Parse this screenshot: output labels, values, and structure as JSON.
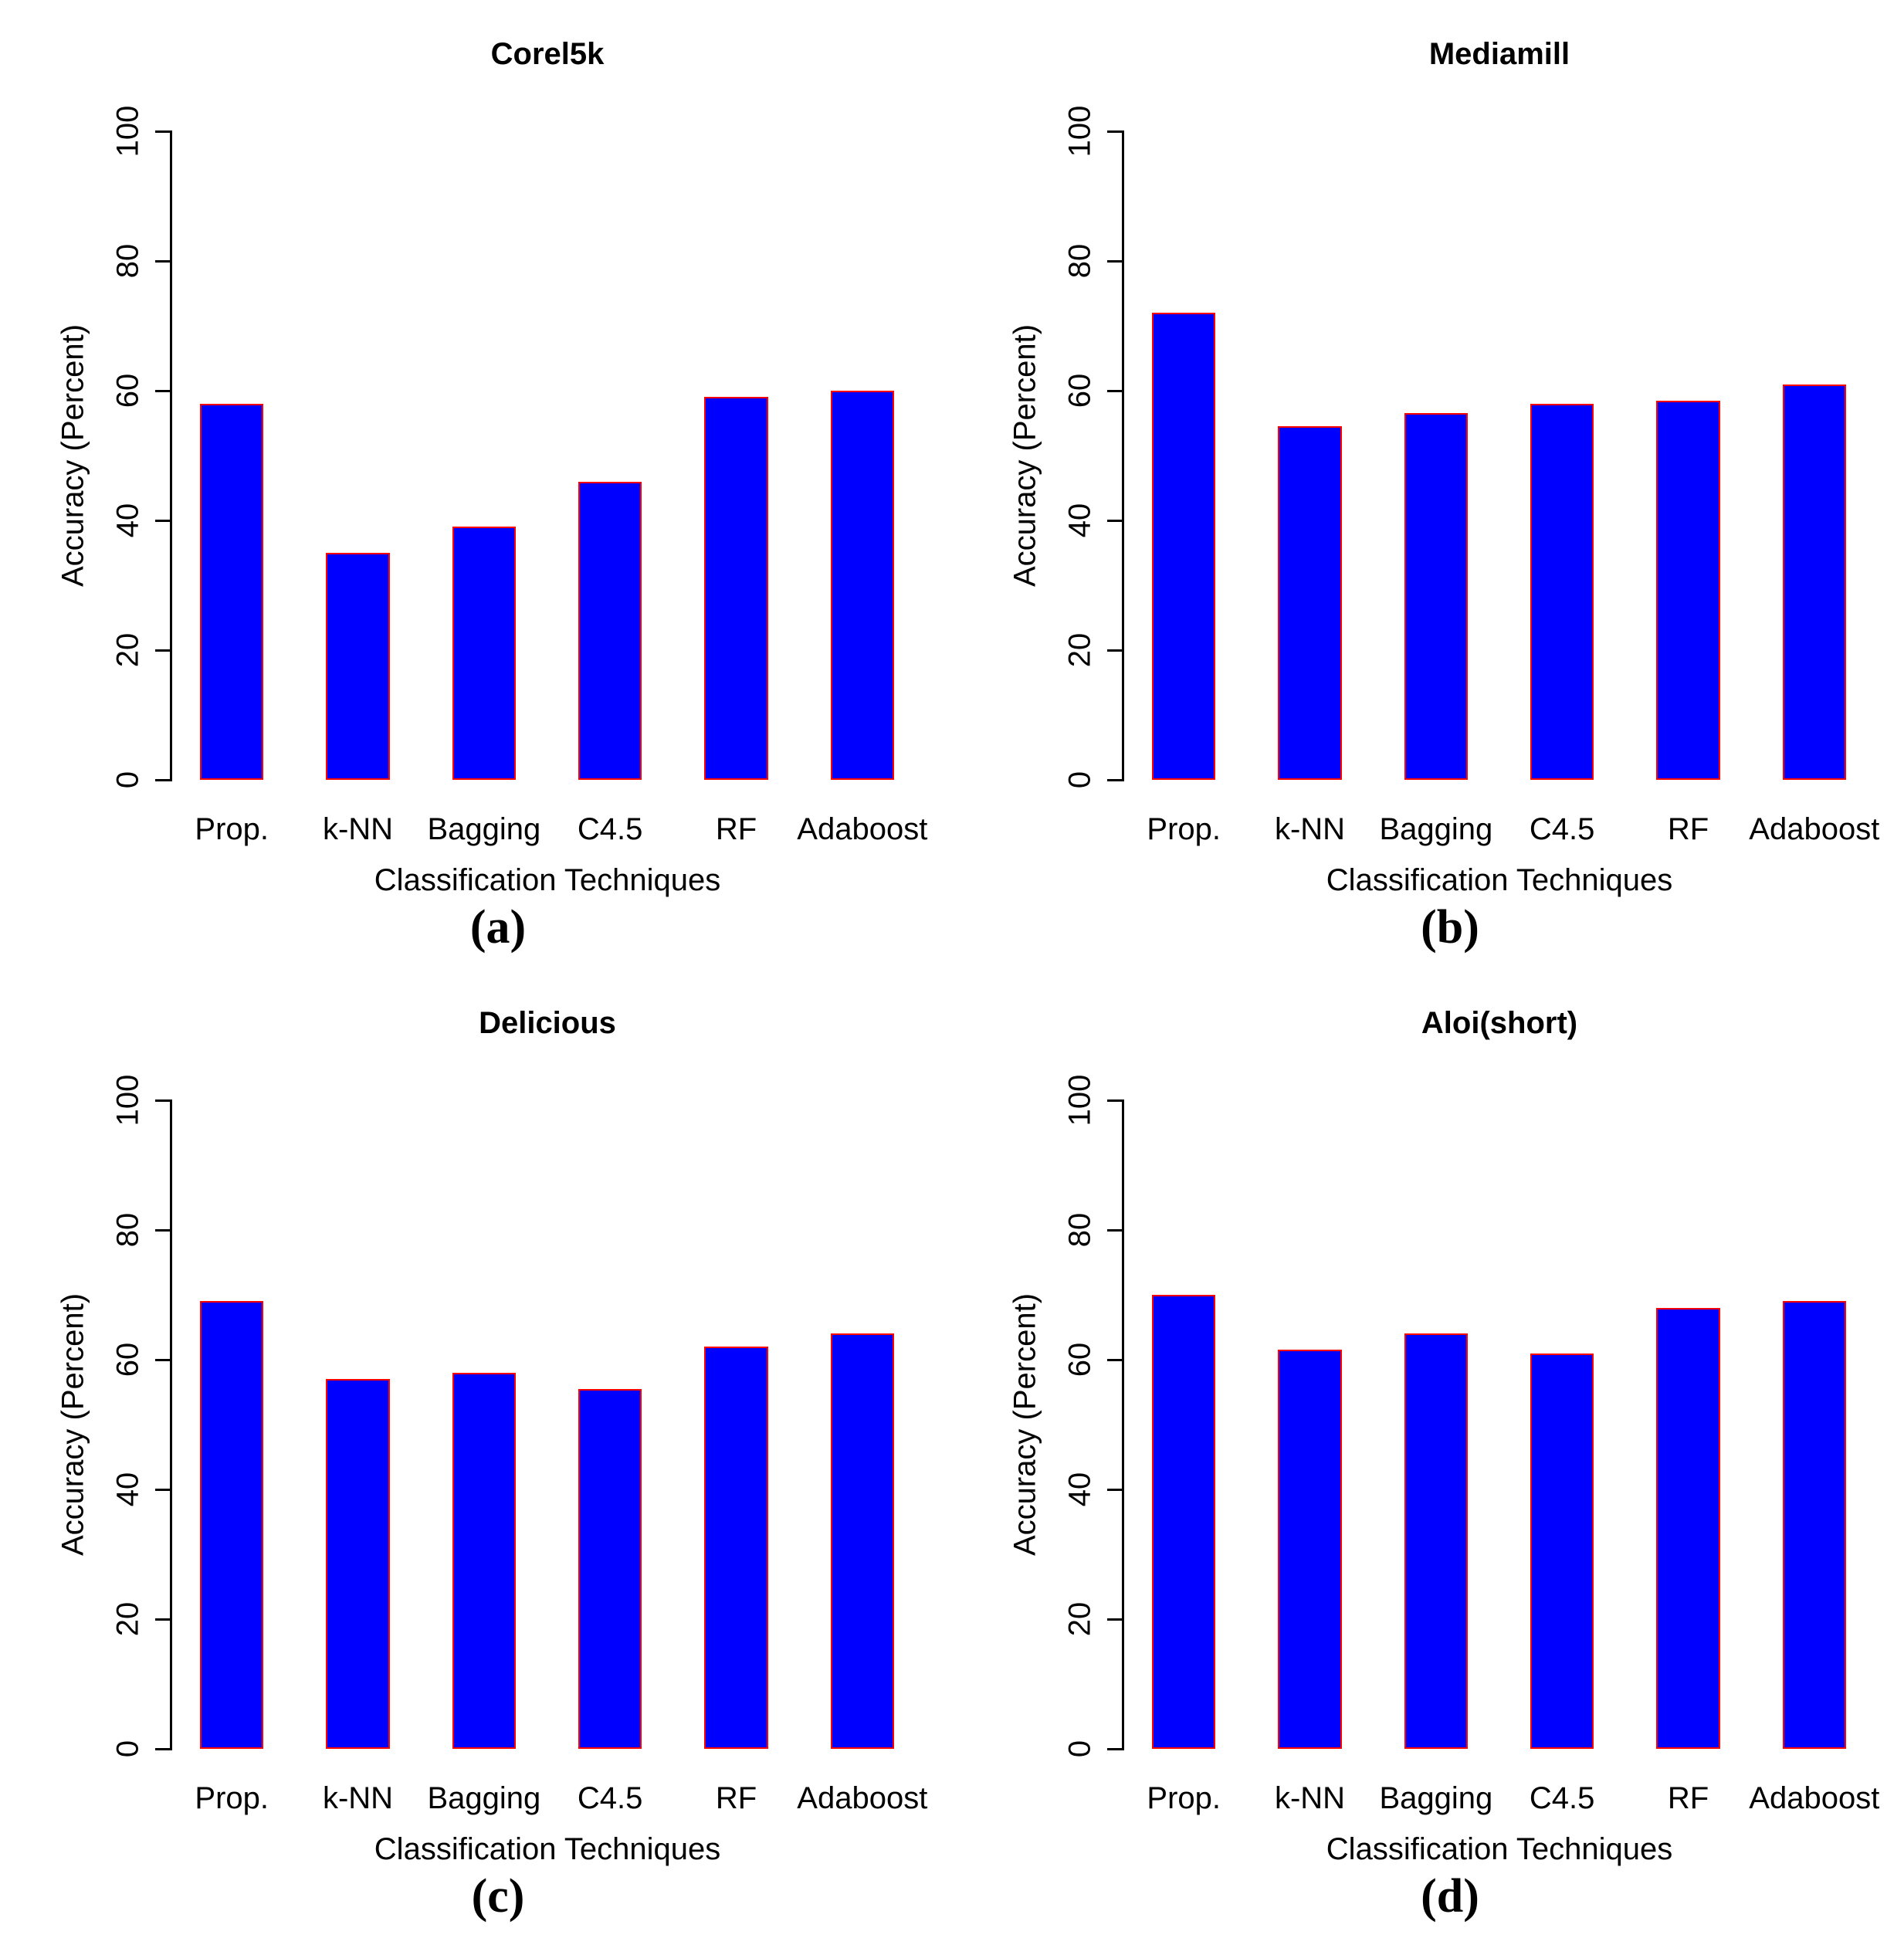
{
  "figure": {
    "background": "#ffffff",
    "text_color": "#000000",
    "axis_color": "#000000"
  },
  "chart_data": [
    {
      "type": "bar",
      "panel_label": "(a)",
      "title": "Corel5k",
      "xlabel": "Classification Techniques",
      "ylabel": "Accuracy (Percent)",
      "categories": [
        "Prop.",
        "k-NN",
        "Bagging",
        "C4.5",
        "RF",
        "Adaboost"
      ],
      "values": [
        58,
        35,
        39,
        46,
        59,
        60
      ],
      "ylim": [
        0,
        100
      ],
      "yticks": [
        0,
        20,
        40,
        60,
        80,
        100
      ],
      "grid": "off",
      "legend": "none",
      "bar_color": "#0000ff",
      "bar_border_color": "#ff0000"
    },
    {
      "type": "bar",
      "panel_label": "(b)",
      "title": "Mediamill",
      "xlabel": "Classification Techniques",
      "ylabel": "Accuracy (Percent)",
      "categories": [
        "Prop.",
        "k-NN",
        "Bagging",
        "C4.5",
        "RF",
        "Adaboost"
      ],
      "values": [
        72,
        54.5,
        56.5,
        58,
        58.5,
        61
      ],
      "ylim": [
        0,
        100
      ],
      "yticks": [
        0,
        20,
        40,
        60,
        80,
        100
      ],
      "grid": "off",
      "legend": "none",
      "bar_color": "#0000ff",
      "bar_border_color": "#ff0000"
    },
    {
      "type": "bar",
      "panel_label": "(c)",
      "title": "Delicious",
      "xlabel": "Classification Techniques",
      "ylabel": "Accuracy (Percent)",
      "categories": [
        "Prop.",
        "k-NN",
        "Bagging",
        "C4.5",
        "RF",
        "Adaboost"
      ],
      "values": [
        69,
        57,
        58,
        55.5,
        62,
        64
      ],
      "ylim": [
        0,
        100
      ],
      "yticks": [
        0,
        20,
        40,
        60,
        80,
        100
      ],
      "grid": "off",
      "legend": "none",
      "bar_color": "#0000ff",
      "bar_border_color": "#ff0000"
    },
    {
      "type": "bar",
      "panel_label": "(d)",
      "title": "Aloi(short)",
      "xlabel": "Classification Techniques",
      "ylabel": "Accuracy (Percent)",
      "categories": [
        "Prop.",
        "k-NN",
        "Bagging",
        "C4.5",
        "RF",
        "Adaboost"
      ],
      "values": [
        70,
        61.5,
        64,
        61,
        68,
        69
      ],
      "ylim": [
        0,
        100
      ],
      "yticks": [
        0,
        20,
        40,
        60,
        80,
        100
      ],
      "grid": "off",
      "legend": "none",
      "bar_color": "#0000ff",
      "bar_border_color": "#ff0000"
    }
  ]
}
